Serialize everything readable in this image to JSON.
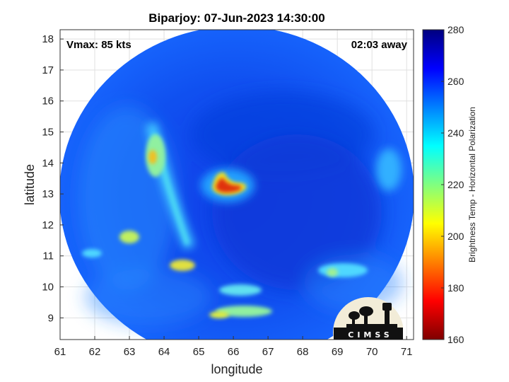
{
  "chart_data": {
    "type": "heatmap",
    "title": "Biparjoy: 07-Jun-2023 14:30:00",
    "xlabel": "longitude",
    "ylabel": "latitude",
    "xlim": [
      61,
      71.2
    ],
    "ylim": [
      8.3,
      18.3
    ],
    "x_ticks": [
      "61",
      "62",
      "63",
      "64",
      "65",
      "66",
      "67",
      "68",
      "69",
      "70",
      "71"
    ],
    "y_ticks": [
      "9",
      "10",
      "11",
      "12",
      "13",
      "14",
      "15",
      "16",
      "17",
      "18"
    ],
    "grid": true,
    "annotations": {
      "vmax": "Vmax: 85 kts",
      "time_away": "02:03 away"
    },
    "colorbar": {
      "label": "Brightness Temp - Horizontal Polarization",
      "range": [
        160,
        280
      ],
      "ticks": [
        "280",
        "260",
        "240",
        "220",
        "200",
        "180",
        "160"
      ],
      "colormap": [
        "#7f0000",
        "#ff0000",
        "#ff8000",
        "#ffff00",
        "#80ff80",
        "#00ffff",
        "#0080ff",
        "#0000ff",
        "#00007f"
      ]
    },
    "swath_center": {
      "lon": 66.0,
      "lat": 13.0
    },
    "features": [
      {
        "name": "eye-warm-core",
        "lon": 66.0,
        "lat": 13.1,
        "value": 185
      },
      {
        "name": "northwest-warm-spot",
        "lon": 63.7,
        "lat": 14.1,
        "value": 210
      },
      {
        "name": "west-rainband",
        "lon": 63.9,
        "lat": 13.0,
        "value": 242
      },
      {
        "name": "southwest-band",
        "lon": 64.5,
        "lat": 10.7,
        "value": 215
      },
      {
        "name": "west-band",
        "lon": 63.1,
        "lat": 11.5,
        "value": 220
      },
      {
        "name": "south-band",
        "lon": 65.6,
        "lat": 9.1,
        "value": 210
      },
      {
        "name": "southeast-band",
        "lon": 69.0,
        "lat": 10.5,
        "value": 235
      }
    ],
    "background_value": 262
  },
  "logo": {
    "text": "CIMSS"
  }
}
